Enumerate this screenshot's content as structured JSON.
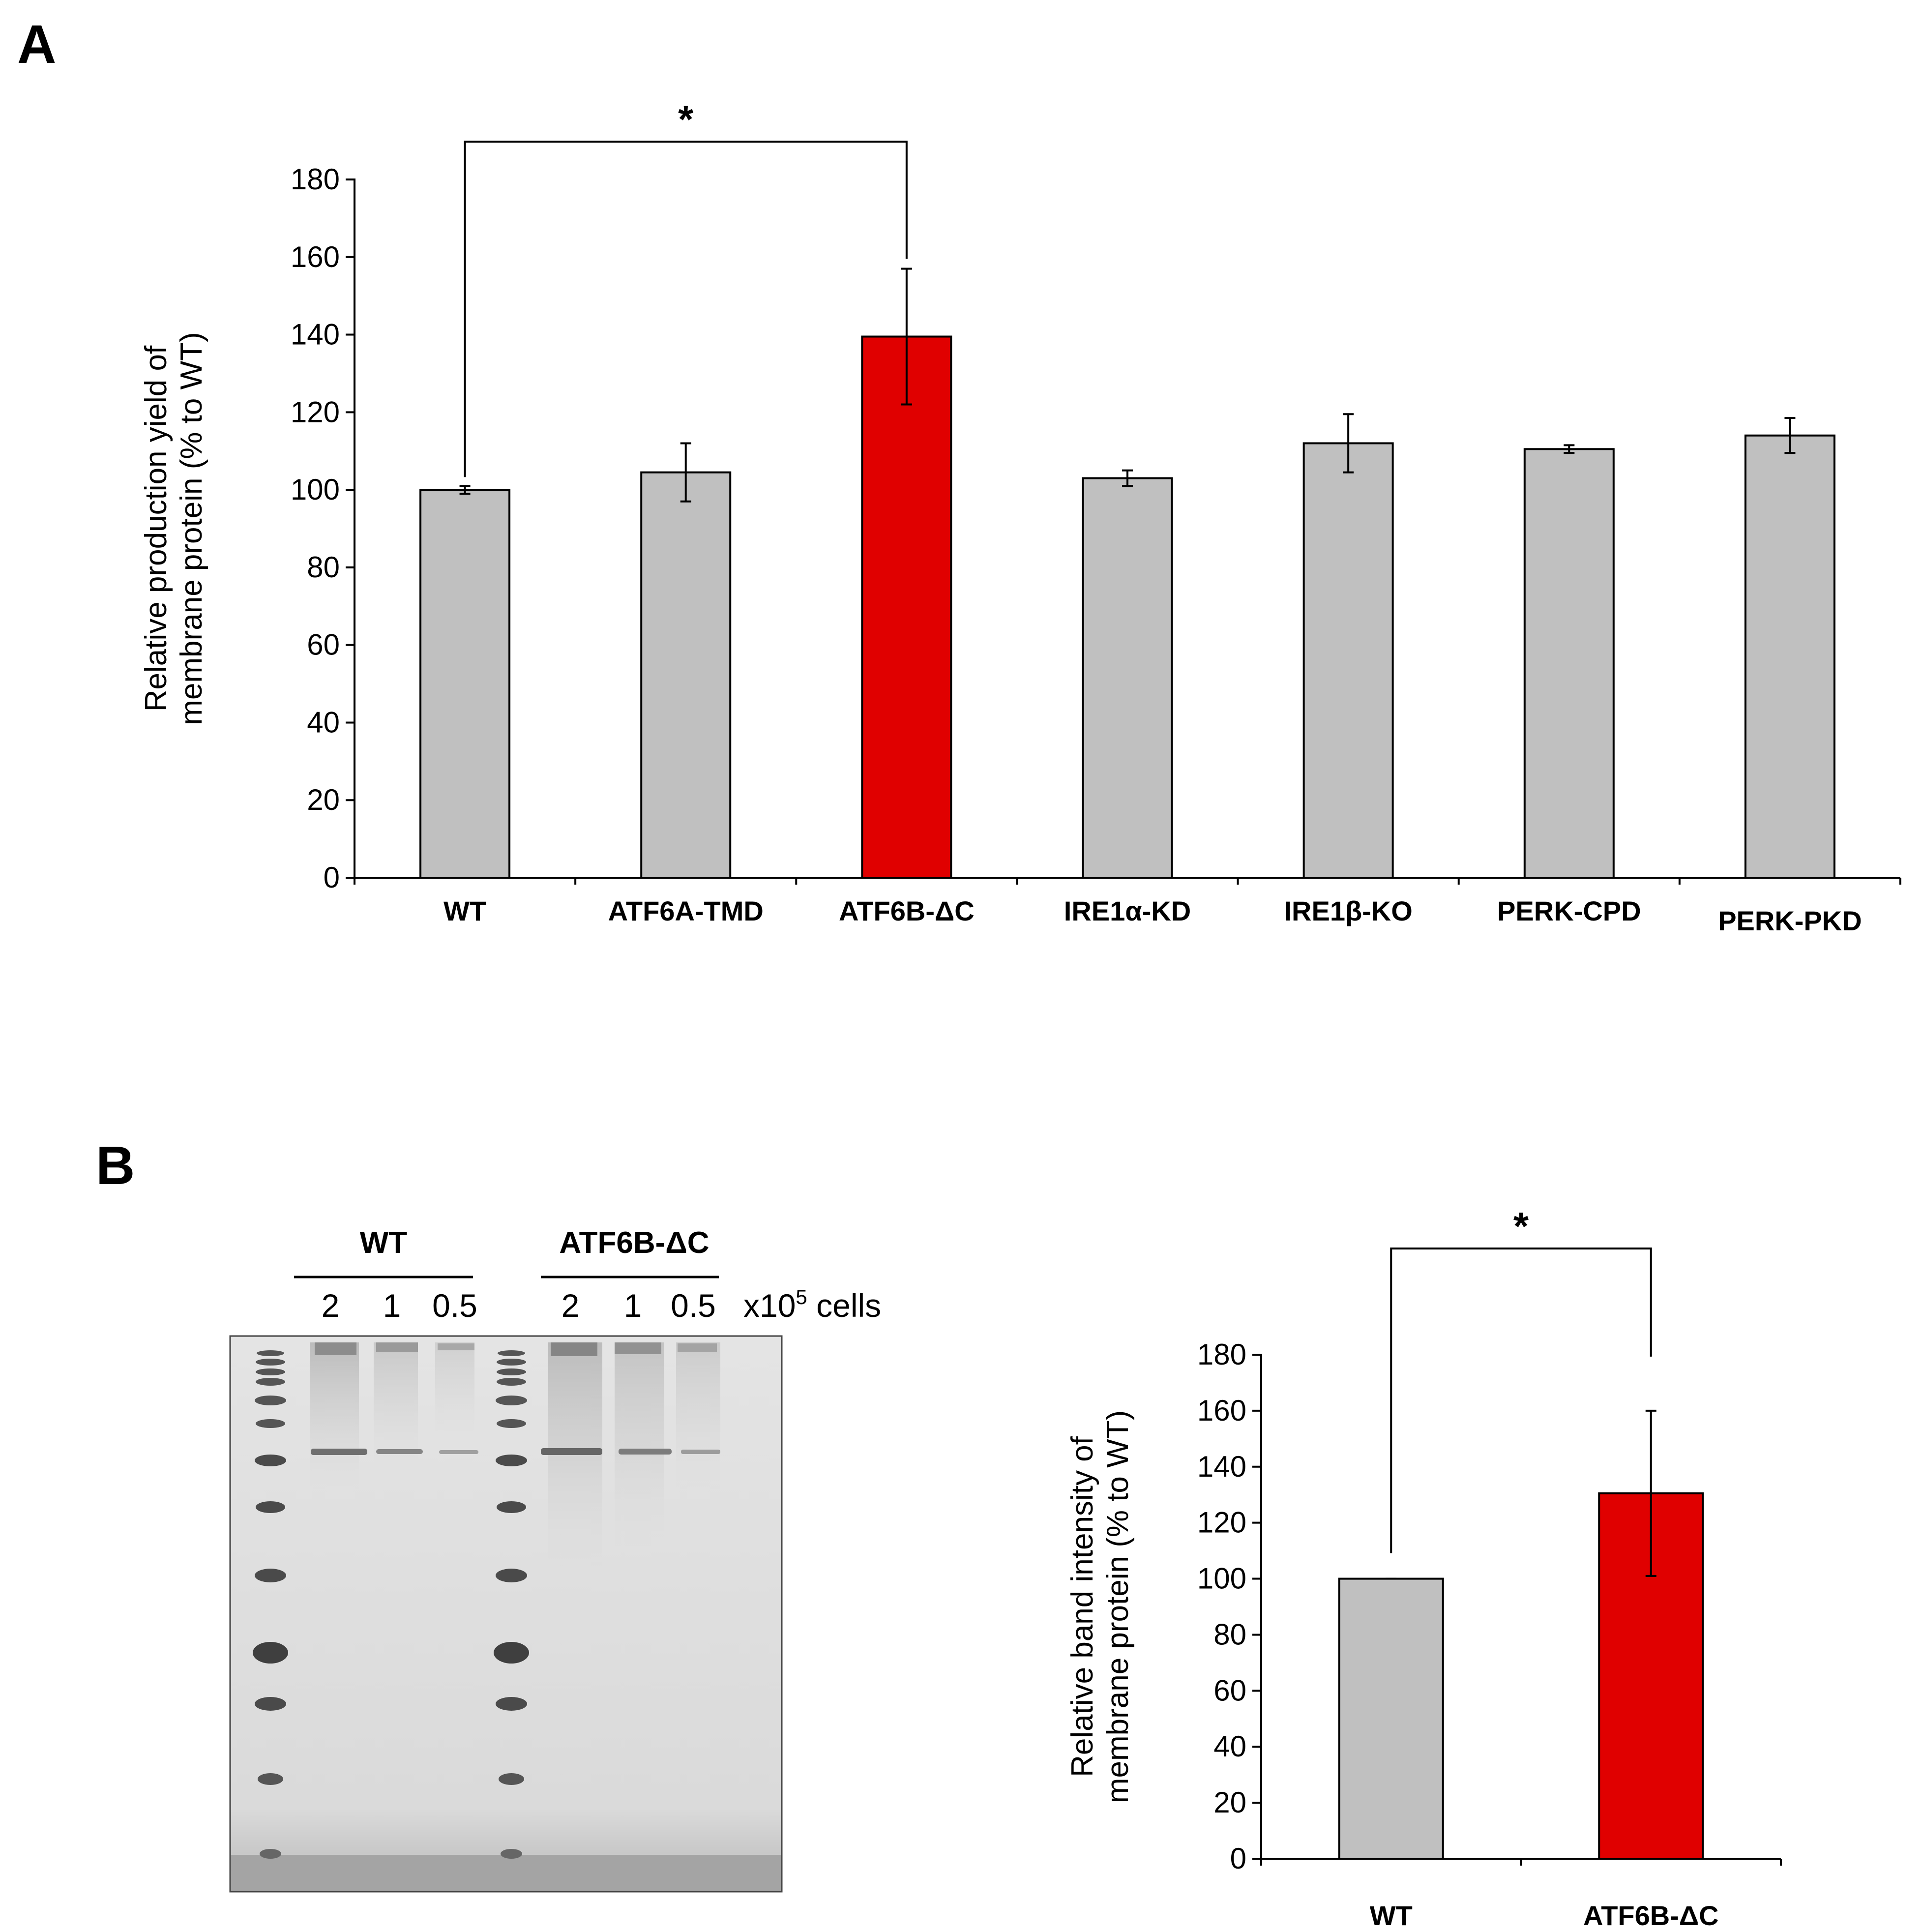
{
  "panel_a": {
    "letter": "A",
    "chart_data": {
      "type": "bar",
      "categories": [
        "WT",
        "ATF6A-TMD",
        "ATF6B-ΔC",
        "IRE1α-KD",
        "IRE1β-KO",
        "PERK-CPD",
        "PERK-PKD"
      ],
      "values": [
        100,
        104.5,
        139.5,
        103,
        112,
        110.5,
        114
      ],
      "errors": [
        1,
        7.5,
        17.5,
        2,
        7.5,
        1,
        4.5
      ],
      "ylabel": [
        "Relative production yield of",
        "membrane protein (% to WT)"
      ],
      "ylim": [
        0,
        180
      ],
      "yticks": [
        0,
        20,
        40,
        60,
        80,
        100,
        120,
        140,
        160,
        180
      ],
      "significance": {
        "from": "WT",
        "to": "ATF6B-ΔC",
        "label": "*"
      },
      "colors": {
        "default": "#c0c0c0",
        "highlight": "#e00000"
      },
      "highlight_index": 2
    }
  },
  "panel_b": {
    "letter": "B",
    "gel": {
      "groups": [
        "WT",
        "ATF6B-ΔC"
      ],
      "lane_labels": [
        "2",
        "1",
        "0.5",
        "2",
        "1",
        "0.5"
      ],
      "unit_label": {
        "prefix": "x10",
        "exponent": "5",
        "suffix": " cells"
      }
    },
    "chart_data": {
      "type": "bar",
      "categories": [
        "WT",
        "ATF6B-ΔC"
      ],
      "values": [
        100,
        130.5
      ],
      "errors": [
        0,
        29.5
      ],
      "ylabel": [
        "Relative band intensity of",
        "membrane protein (% to WT)"
      ],
      "ylim": [
        0,
        180
      ],
      "yticks": [
        0,
        20,
        40,
        60,
        80,
        100,
        120,
        140,
        160,
        180
      ],
      "significance": {
        "from": "WT",
        "to": "ATF6B-ΔC",
        "label": "*"
      },
      "colors": {
        "default": "#c0c0c0",
        "highlight": "#e00000"
      },
      "highlight_index": 1
    }
  }
}
